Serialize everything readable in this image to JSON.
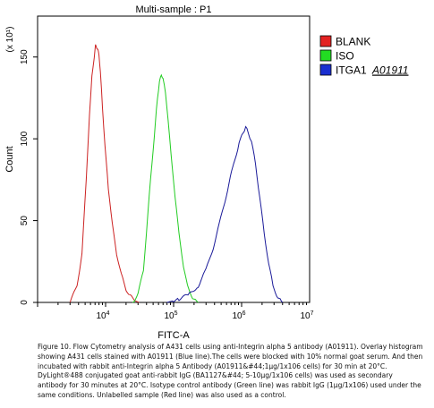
{
  "chart_data": {
    "type": "line",
    "title": "Multi-sample : P1",
    "xlabel": "FITC-A",
    "ylabel": "Count",
    "y_multiplier": "(x 10¹)",
    "x_scale": "log",
    "xlim": [
      1000,
      10000000
    ],
    "ylim": [
      0,
      175
    ],
    "x_ticks": [
      {
        "value": 10000,
        "base": "10",
        "exp": "4"
      },
      {
        "value": 100000,
        "base": "10",
        "exp": "5"
      },
      {
        "value": 1000000,
        "base": "10",
        "exp": "6"
      },
      {
        "value": 10000000,
        "base": "10",
        "exp": "7"
      }
    ],
    "y_ticks": [
      0,
      50,
      100,
      150
    ],
    "legend_position": "right",
    "series": [
      {
        "name": "BLANK",
        "color": "#cc2222",
        "marker_fill": "#e32222",
        "x": [
          3000,
          3800,
          4500,
          5200,
          5800,
          6300,
          6800,
          7100,
          7400,
          7700,
          8000,
          8400,
          9000,
          9800,
          11000,
          12500,
          14500,
          17000,
          20000,
          23000,
          27000,
          31000
        ],
        "y": [
          0,
          10,
          30,
          75,
          115,
          138,
          150,
          157,
          156,
          154,
          152,
          140,
          120,
          95,
          70,
          48,
          30,
          17,
          8,
          4,
          1,
          0
        ]
      },
      {
        "name": "ISO",
        "color": "#22cc22",
        "marker_fill": "#22dd22",
        "x": [
          25000,
          30000,
          36000,
          42000,
          48000,
          54000,
          58000,
          62000,
          66000,
          70000,
          76000,
          83000,
          92000,
          105000,
          120000,
          140000,
          160000,
          190000,
          230000
        ],
        "y": [
          0,
          5,
          20,
          55,
          85,
          110,
          125,
          135,
          139,
          137,
          128,
          112,
          90,
          65,
          42,
          22,
          10,
          3,
          0
        ]
      },
      {
        "name": "ITGA1",
        "color": "#1a1a99",
        "marker_fill": "#1a2fd0",
        "x": [
          80000,
          120000,
          170000,
          230000,
          300000,
          380000,
          470000,
          570000,
          680000,
          800000,
          920000,
          1050000,
          1150000,
          1250000,
          1400000,
          1600000,
          1850000,
          2150000,
          2500000,
          2900000,
          3400000,
          4000000
        ],
        "y": [
          0,
          2,
          5,
          10,
          20,
          33,
          48,
          62,
          76,
          88,
          97,
          104,
          107,
          104,
          98,
          85,
          64,
          42,
          24,
          10,
          3,
          0
        ]
      }
    ],
    "legend_extra": "A01911"
  },
  "caption": {
    "text": "Figure 10. Flow Cytometry analysis of A431 cells using anti-Integrin alpha 5 antibody (A01911). Overlay histogram showing A431 cells stained with A01911 (Blue line).The cells were blocked with 10% normal goat serum. And then incubated with rabbit anti-Integrin alpha 5 Antibody (A01911&#44;1µg/1x106 cells) for 30 min at 20°C. DyLight®488 conjugated goat anti-rabbit IgG (BA1127&#44; 5-10µg/1x106 cells) was used as secondary antibody for 30 minutes at 20°C. Isotype control antibody (Green line) was rabbit IgG (1µg/1x106) used under the same conditions. Unlabelled sample (Red line) was also used as a control."
  }
}
